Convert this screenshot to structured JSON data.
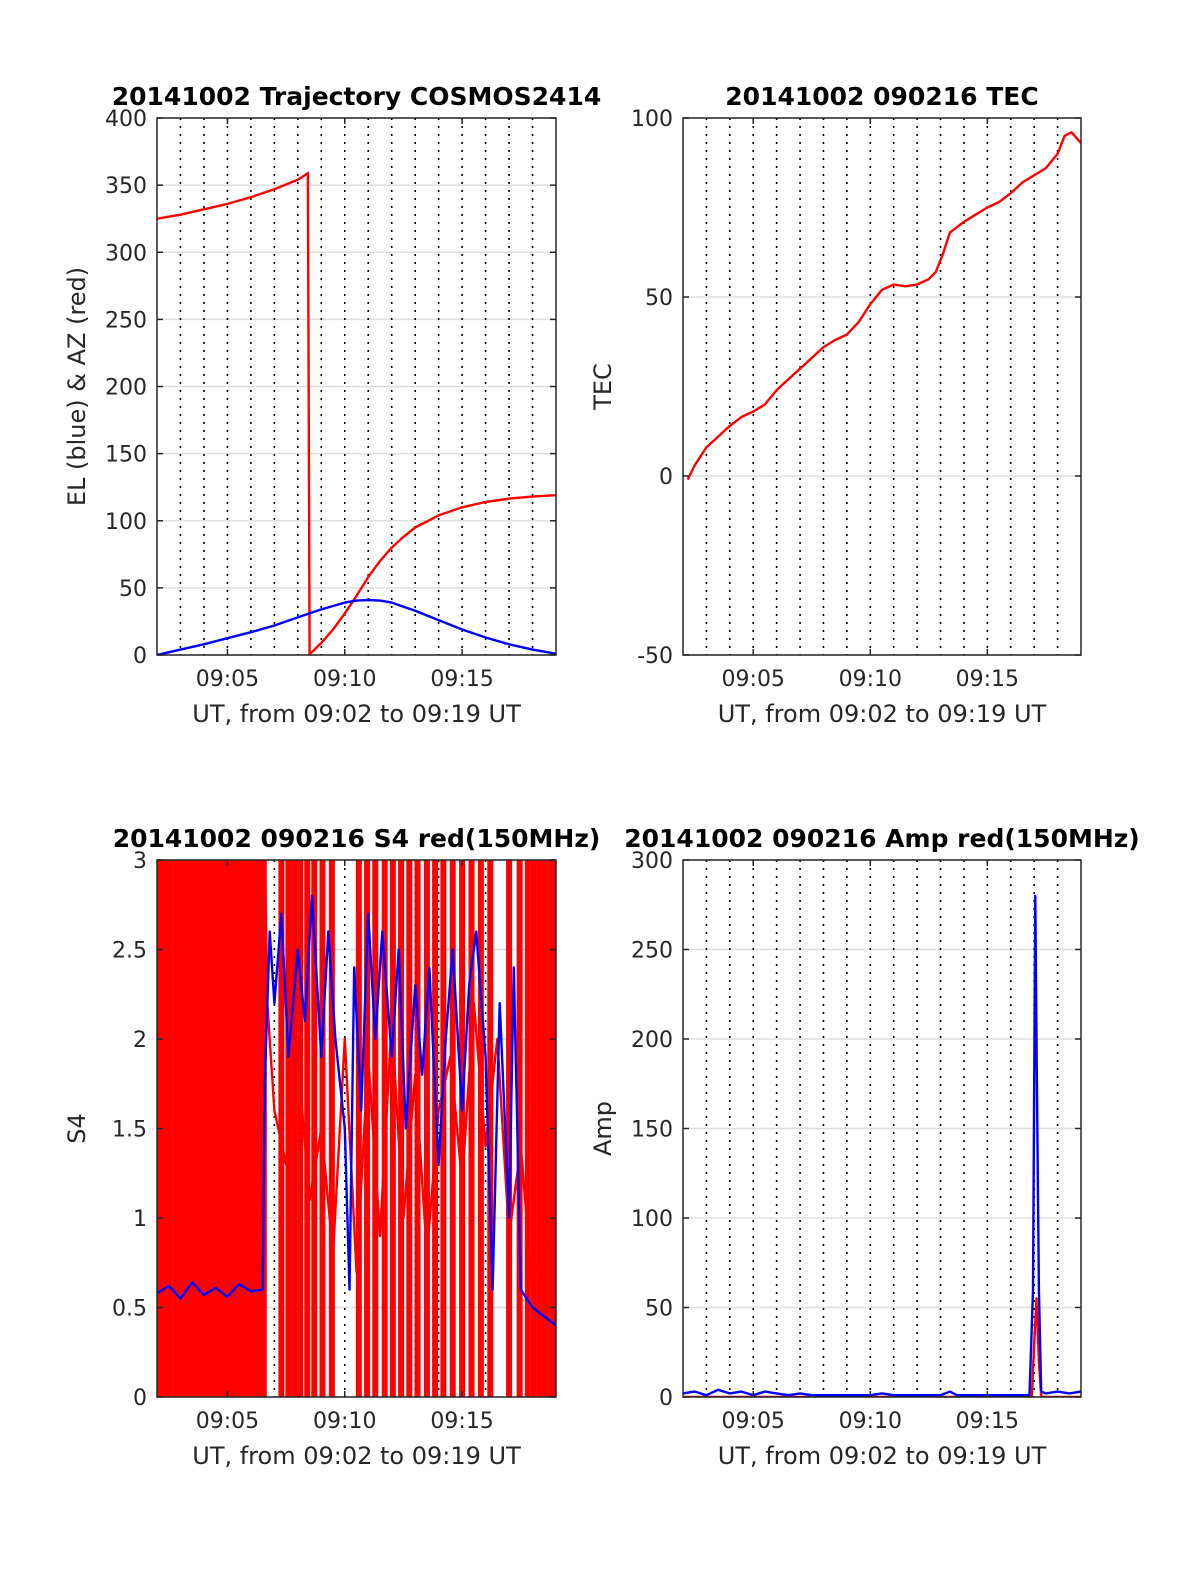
{
  "figure": {
    "background": "#ffffff"
  },
  "chart_data": [
    {
      "type": "line",
      "title": "20141002 Trajectory COSMOS2414",
      "xlabel": "UT, from 09:02 to 09:19 UT",
      "ylabel": "EL (blue) & AZ (red)",
      "x_unit": "minutes after 09:00 UT",
      "xlim": [
        2.0,
        19.0
      ],
      "ylim": [
        0,
        400
      ],
      "xtick_values": [
        5,
        10,
        15
      ],
      "xtick_labels": [
        "09:05",
        "09:10",
        "09:15"
      ],
      "ytick_values": [
        0,
        50,
        100,
        150,
        200,
        250,
        300,
        350,
        400
      ],
      "ytick_labels": [
        "0",
        "50",
        "100",
        "150",
        "200",
        "250",
        "300",
        "350",
        "400"
      ],
      "minute_grid_dotted": true,
      "horizontal_grid": true,
      "series": [
        {
          "color": "#ff0000",
          "x": [
            2.0,
            3.0,
            4.0,
            5.0,
            6.0,
            7.0,
            7.5,
            8.0,
            8.4,
            8.43,
            8.5,
            9.0,
            9.5,
            10.0,
            10.5,
            11.0,
            11.5,
            12.0,
            12.5,
            13.0,
            14.0,
            15.0,
            16.0,
            17.0,
            18.0,
            19.0
          ],
          "y": [
            325,
            328,
            332,
            336,
            341,
            347,
            350.5,
            354,
            358.5,
            359,
            0.5,
            9,
            19,
            31,
            44,
            58,
            70,
            80,
            88,
            95,
            104,
            110,
            114,
            116.5,
            118,
            119
          ]
        },
        {
          "color": "#0000ff",
          "x": [
            2.0,
            3.0,
            4.0,
            5.0,
            6.0,
            7.0,
            8.0,
            9.0,
            10.0,
            10.5,
            11.0,
            11.5,
            12.0,
            13.0,
            14.0,
            15.0,
            16.0,
            17.0,
            18.0,
            19.0
          ],
          "y": [
            0,
            4,
            8,
            12.5,
            17,
            22,
            28,
            34,
            39,
            40.5,
            41,
            40.5,
            39,
            33,
            26,
            19,
            13,
            8,
            4,
            1
          ]
        }
      ]
    },
    {
      "type": "line",
      "title": "20141002 090216 TEC",
      "xlabel": "UT, from 09:02 to 09:19 UT",
      "ylabel": "TEC",
      "x_unit": "minutes after 09:00 UT",
      "xlim": [
        2.0,
        19.0
      ],
      "ylim": [
        -50,
        100
      ],
      "xtick_values": [
        5,
        10,
        15
      ],
      "xtick_labels": [
        "09:05",
        "09:10",
        "09:15"
      ],
      "ytick_values": [
        -50,
        0,
        50,
        100
      ],
      "ytick_labels": [
        "-50",
        "0",
        "50",
        "100"
      ],
      "minute_grid_dotted": true,
      "horizontal_grid": true,
      "series": [
        {
          "color": "#ff0000",
          "x": [
            2.2,
            2.5,
            3.0,
            3.5,
            4.0,
            4.5,
            5.0,
            5.5,
            6.0,
            6.5,
            7.0,
            7.5,
            8.0,
            8.5,
            9.0,
            9.5,
            10.0,
            10.5,
            11.0,
            11.5,
            12.0,
            12.5,
            12.8,
            13.1,
            13.4,
            14.0,
            14.5,
            15.0,
            15.5,
            16.0,
            16.5,
            17.0,
            17.5,
            18.0,
            18.3,
            18.6,
            19.0
          ],
          "y": [
            -1,
            3,
            8,
            11,
            14,
            16.5,
            18,
            20,
            24,
            27,
            30,
            33,
            36,
            38,
            39.5,
            43,
            48,
            52,
            53.5,
            53,
            53.5,
            55,
            57,
            62,
            68,
            71,
            73,
            75,
            76.5,
            79,
            82,
            84,
            86,
            90,
            95,
            96,
            93
          ]
        }
      ]
    },
    {
      "type": "line",
      "title": "20141002 090216 S4 red(150MHz)",
      "xlabel": "UT, from 09:02 to 09:19 UT",
      "ylabel": "S4",
      "x_unit": "minutes after 09:00 UT",
      "xlim": [
        2.0,
        19.0
      ],
      "ylim": [
        0,
        3
      ],
      "xtick_values": [
        5,
        10,
        15
      ],
      "xtick_labels": [
        "09:05",
        "09:10",
        "09:15"
      ],
      "ytick_values": [
        0,
        0.5,
        1,
        1.5,
        2,
        2.5,
        3
      ],
      "ytick_labels": [
        "0",
        "0.5",
        "1",
        "1.5",
        "2",
        "2.5",
        "3"
      ],
      "minute_grid_dotted": true,
      "horizontal_grid": true,
      "red_spikes": [
        2.15,
        2.35,
        2.55,
        2.8,
        3.0,
        3.15,
        3.3,
        3.55,
        3.7,
        3.85,
        4.05,
        4.2,
        4.4,
        4.55,
        4.75,
        4.9,
        5.05,
        5.25,
        5.4,
        5.55,
        5.75,
        5.9,
        6.05,
        6.2,
        6.4,
        6.55,
        7.3,
        7.6,
        7.85,
        8.1,
        8.4,
        8.7,
        9.05,
        9.45,
        10.6,
        10.95,
        11.3,
        11.7,
        12.05,
        12.4,
        12.75,
        13.1,
        13.5,
        13.85,
        14.2,
        14.6,
        15.0,
        15.4,
        15.8,
        16.2,
        17.0,
        17.45,
        17.8,
        18.05,
        18.3,
        18.55,
        18.8,
        18.95
      ],
      "series": [
        {
          "color": "#ff0000",
          "x": [
            2.0,
            6.6,
            6.7,
            7.0,
            7.5,
            8.0,
            8.5,
            9.0,
            9.5,
            10.0,
            10.5,
            11.0,
            11.5,
            12.0,
            12.5,
            13.0,
            13.5,
            14.0,
            14.5,
            15.0,
            15.5,
            16.0,
            16.5,
            17.0,
            17.5,
            18.0,
            18.5,
            19.0
          ],
          "y": [
            3.0,
            3.0,
            2.2,
            1.6,
            1.3,
            1.9,
            1.1,
            1.5,
            0.8,
            2.0,
            0.7,
            1.9,
            0.9,
            2.1,
            1.0,
            1.8,
            0.8,
            1.6,
            1.9,
            1.2,
            2.2,
            1.4,
            2.0,
            0.9,
            1.4,
            0.6,
            0.9,
            0.8
          ]
        },
        {
          "color": "#0000ff",
          "x": [
            2.0,
            2.5,
            3.0,
            3.5,
            4.0,
            4.5,
            5.0,
            5.5,
            6.0,
            6.5,
            6.6,
            6.8,
            7.0,
            7.3,
            7.6,
            8.0,
            8.3,
            8.6,
            9.0,
            9.3,
            9.6,
            10.0,
            10.2,
            10.4,
            10.7,
            11.0,
            11.3,
            11.6,
            12.0,
            12.3,
            12.6,
            13.0,
            13.3,
            13.6,
            14.0,
            14.3,
            14.6,
            15.0,
            15.3,
            15.6,
            16.0,
            16.3,
            16.6,
            17.0,
            17.2,
            17.5,
            18.0,
            18.5,
            19.0
          ],
          "y": [
            0.58,
            0.62,
            0.55,
            0.64,
            0.57,
            0.61,
            0.56,
            0.63,
            0.59,
            0.6,
            1.8,
            2.6,
            2.2,
            2.7,
            1.9,
            2.5,
            2.1,
            2.8,
            1.9,
            2.6,
            2.0,
            1.5,
            0.6,
            2.4,
            1.6,
            2.7,
            2.0,
            2.6,
            1.9,
            2.5,
            1.5,
            2.3,
            1.8,
            2.4,
            1.3,
            2.0,
            2.5,
            1.6,
            2.3,
            2.6,
            1.9,
            0.6,
            2.2,
            1.0,
            2.4,
            0.6,
            0.5,
            0.45,
            0.4
          ]
        }
      ]
    },
    {
      "type": "line",
      "title": "20141002 090216 Amp red(150MHz)",
      "xlabel": "UT, from 09:02 to 09:19 UT",
      "ylabel": "Amp",
      "x_unit": "minutes after 09:00 UT",
      "xlim": [
        2.0,
        19.0
      ],
      "ylim": [
        0,
        300
      ],
      "xtick_values": [
        5,
        10,
        15
      ],
      "xtick_labels": [
        "09:05",
        "09:10",
        "09:15"
      ],
      "ytick_values": [
        0,
        50,
        100,
        150,
        200,
        250,
        300
      ],
      "ytick_labels": [
        "0",
        "50",
        "100",
        "150",
        "200",
        "250",
        "300"
      ],
      "minute_grid_dotted": true,
      "horizontal_grid": true,
      "series": [
        {
          "color": "#ff0000",
          "x": [
            2.0,
            16.9,
            17.0,
            17.1,
            17.2,
            17.3,
            19.0
          ],
          "y": [
            0,
            0,
            30,
            55,
            20,
            0,
            0
          ]
        },
        {
          "color": "#0000ff",
          "x": [
            2.0,
            2.5,
            3.0,
            3.5,
            4.0,
            4.5,
            5.0,
            5.5,
            6.0,
            6.5,
            7.0,
            7.5,
            8.0,
            9.0,
            10.0,
            10.5,
            11.0,
            12.0,
            13.0,
            13.4,
            13.7,
            14.0,
            15.0,
            16.0,
            16.8,
            16.95,
            17.05,
            17.1,
            17.2,
            17.3,
            17.5,
            18.0,
            18.5,
            19.0
          ],
          "y": [
            2,
            3,
            1,
            4,
            2,
            3,
            1,
            3,
            2,
            1,
            2,
            1,
            1,
            1,
            1,
            2,
            1,
            1,
            1,
            3,
            1,
            1,
            1,
            1,
            1,
            60,
            280,
            200,
            60,
            3,
            2,
            3,
            2,
            3
          ]
        }
      ]
    }
  ]
}
